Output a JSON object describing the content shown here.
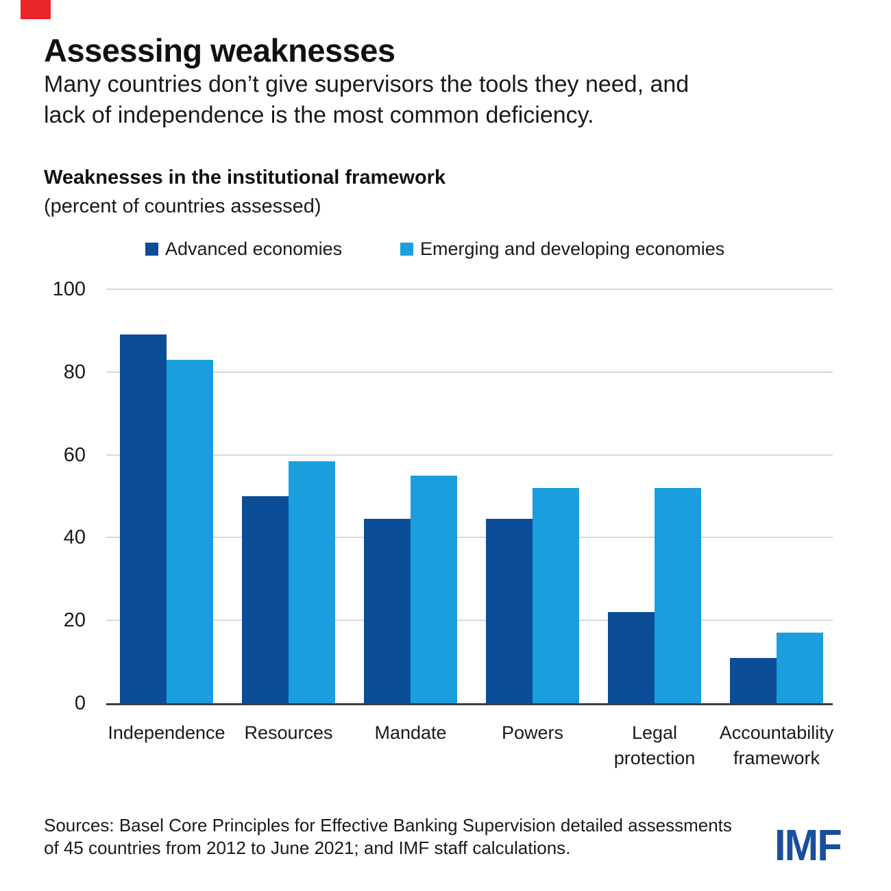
{
  "header": {
    "title": "Assessing weaknesses",
    "subtitle_line1": "Many countries don’t give supervisors the tools they need, and",
    "subtitle_line2": "lack of independence is the most common deficiency."
  },
  "chart": {
    "heading": "Weaknesses in the institutional framework",
    "unit_label": "(percent of countries assessed)"
  },
  "legend": {
    "items": [
      {
        "label": "Advanced economies",
        "color": "#0b4d97"
      },
      {
        "label": "Emerging and developing economies",
        "color": "#1b9edd"
      }
    ]
  },
  "chart_data": {
    "type": "bar",
    "title": "Weaknesses in the institutional framework",
    "xlabel": "",
    "ylabel": "percent of countries assessed",
    "ylim": [
      0,
      100
    ],
    "yticks": [
      0,
      20,
      40,
      60,
      80,
      100
    ],
    "grid": "horizontal",
    "legend_position": "top",
    "categories": [
      "Independence",
      "Resources",
      "Mandate",
      "Powers",
      "Legal protection",
      "Accountability framework"
    ],
    "category_label_lines": [
      [
        "Independence"
      ],
      [
        "Resources"
      ],
      [
        "Mandate"
      ],
      [
        "Powers"
      ],
      [
        "Legal",
        "protection"
      ],
      [
        "Accountability",
        "framework"
      ]
    ],
    "series": [
      {
        "name": "Advanced economies",
        "color": "#0b4d97",
        "values": [
          89,
          50,
          44.5,
          44.5,
          22,
          11
        ]
      },
      {
        "name": "Emerging and developing economies",
        "color": "#1b9edd",
        "values": [
          83,
          58.5,
          55,
          52,
          52,
          17
        ]
      }
    ]
  },
  "footer": {
    "sources_line1": "Sources: Basel Core Principles for Effective Banking Supervision detailed assessments",
    "sources_line2": "of 45 countries from 2012 to June 2021; and IMF staff calculations.",
    "logo_text": "IMF"
  },
  "colors": {
    "advanced_blue": "#0b4d97",
    "emerging_blue": "#1b9edd",
    "logo_blue": "#1a4f9e",
    "red_square": "#e8262b",
    "gridline": "#d9d9d9",
    "axis_line": "#3d3d3d",
    "text": "#1a1a1a"
  }
}
